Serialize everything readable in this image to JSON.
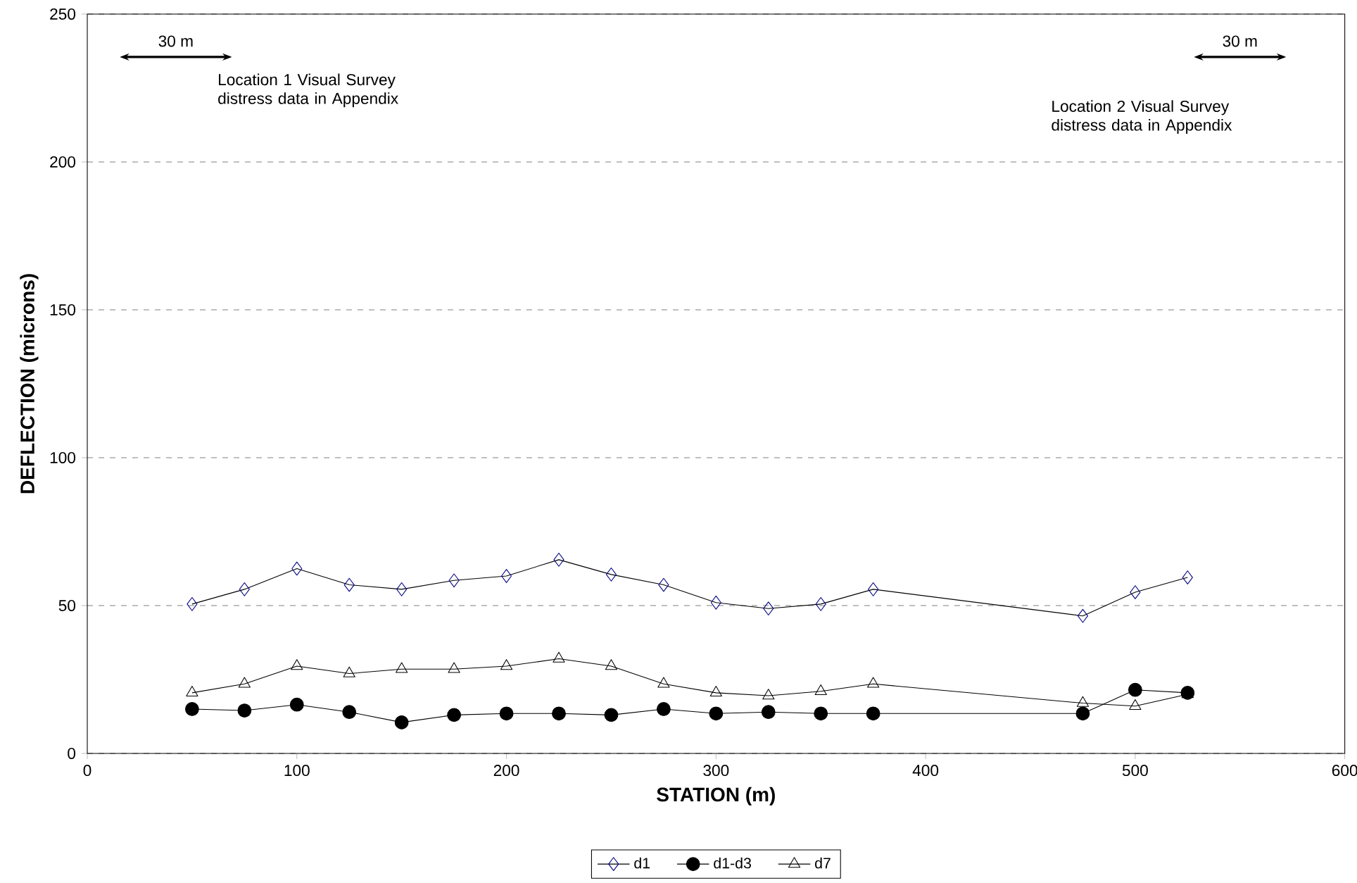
{
  "chart_data": {
    "type": "line",
    "xlabel": "STATION (m)",
    "ylabel": "DEFLECTION (microns)",
    "x": [
      50,
      75,
      100,
      125,
      150,
      175,
      200,
      225,
      250,
      275,
      300,
      325,
      350,
      375,
      475,
      500,
      525
    ],
    "series": [
      {
        "name": "d1",
        "color": "#000080",
        "marker": "diamond",
        "values": [
          50.5,
          55.5,
          62.5,
          57,
          55.5,
          58.5,
          60,
          65.5,
          60.5,
          57,
          51,
          49,
          50.5,
          55.5,
          46.5,
          54.5,
          59.5
        ]
      },
      {
        "name": "d1-d3",
        "color": "#000000",
        "marker": "circle",
        "values": [
          15,
          14.5,
          16.5,
          14,
          10.5,
          13,
          13.5,
          13.5,
          13,
          15,
          13.5,
          14,
          13.5,
          13.5,
          13.5,
          21.5,
          20.5
        ]
      },
      {
        "name": "d7",
        "color": "#000000",
        "marker": "triangle",
        "values": [
          20.5,
          23.5,
          29.5,
          27,
          28.5,
          28.5,
          29.5,
          32,
          29.5,
          23.5,
          20.5,
          19.5,
          21,
          23.5,
          17,
          16,
          20
        ]
      }
    ],
    "xlim": [
      0,
      600
    ],
    "xticks": [
      0,
      100,
      200,
      300,
      400,
      500,
      600
    ],
    "ylim": [
      0,
      250
    ],
    "yticks": [
      0,
      50,
      100,
      150,
      200,
      250
    ],
    "grid": "y",
    "legend": "bottom",
    "annotations": [
      "30 m",
      "Location 1  Visual Survey distress data in Appendix",
      "30 m",
      "Location 2  Visual Survey distress data in Appendix"
    ]
  }
}
